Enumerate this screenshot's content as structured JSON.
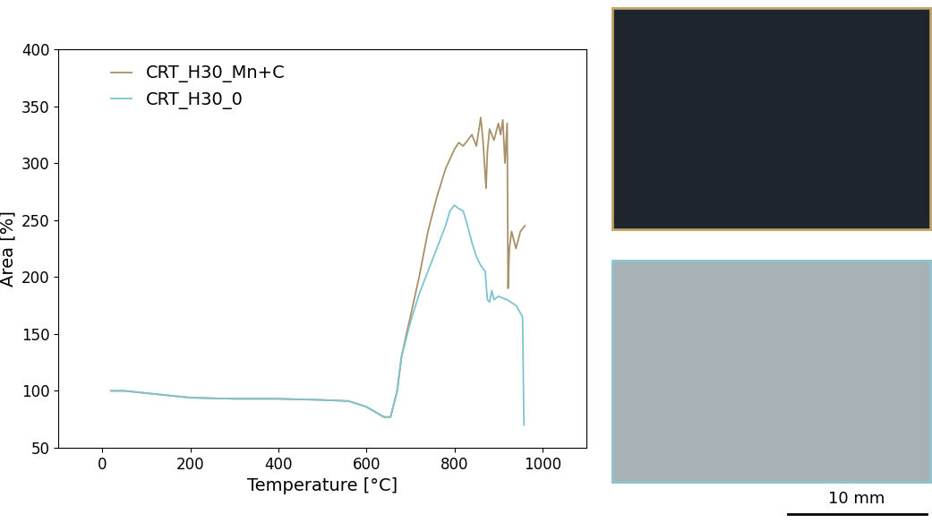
{
  "chart_data": {
    "type": "line",
    "xlabel": "Temperature [°C]",
    "ylabel": "Area [%]",
    "xlim": [
      -100,
      1100
    ],
    "xticks": [
      0,
      200,
      400,
      600,
      800,
      1000
    ],
    "ylim": [
      50,
      400
    ],
    "yticks": [
      50,
      100,
      150,
      200,
      250,
      300,
      350,
      400
    ],
    "legend": "upper left",
    "annotations": [
      "10 mm"
    ],
    "series": [
      {
        "name": "CRT_H30_Mn+C",
        "color": "#a8906a",
        "x": [
          20,
          50,
          100,
          200,
          300,
          400,
          500,
          560,
          600,
          640,
          655,
          670,
          680,
          690,
          700,
          720,
          740,
          760,
          780,
          800,
          810,
          820,
          830,
          840,
          850,
          860,
          865,
          870,
          872,
          875,
          880,
          890,
          900,
          905,
          910,
          915,
          920,
          922,
          925,
          930,
          940,
          950,
          960
        ],
        "values": [
          100,
          100,
          98,
          94,
          93,
          93,
          92,
          91,
          86,
          77,
          77,
          100,
          130,
          148,
          165,
          200,
          240,
          270,
          295,
          312,
          318,
          315,
          320,
          325,
          315,
          340,
          320,
          290,
          278,
          310,
          330,
          320,
          335,
          325,
          338,
          300,
          335,
          190,
          225,
          240,
          225,
          240,
          245
        ]
      },
      {
        "name": "CRT_H30_0",
        "color": "#7ec4cf",
        "x": [
          20,
          50,
          100,
          200,
          300,
          400,
          500,
          560,
          600,
          640,
          655,
          670,
          680,
          690,
          700,
          720,
          740,
          760,
          780,
          790,
          800,
          810,
          820,
          830,
          840,
          850,
          860,
          870,
          875,
          880,
          885,
          890,
          900,
          920,
          940,
          955,
          958
        ],
        "values": [
          100,
          100,
          98,
          94,
          93,
          93,
          92,
          91,
          86,
          77,
          77,
          100,
          130,
          145,
          160,
          185,
          205,
          225,
          245,
          258,
          263,
          260,
          258,
          245,
          230,
          218,
          210,
          205,
          180,
          178,
          188,
          180,
          183,
          180,
          175,
          165,
          70
        ]
      }
    ]
  }
}
